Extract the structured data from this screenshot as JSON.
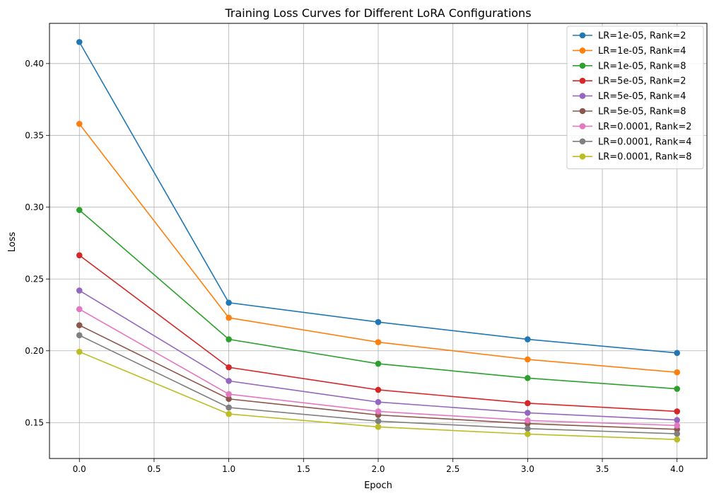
{
  "chart_data": {
    "type": "line",
    "title": "Training Loss Curves for Different LoRA Configurations",
    "xlabel": "Epoch",
    "ylabel": "Loss",
    "x": [
      0,
      1,
      2,
      3,
      4
    ],
    "xlim": [
      -0.2,
      4.2
    ],
    "ylim": [
      0.125,
      0.428
    ],
    "xticks": [
      "0.0",
      "0.5",
      "1.0",
      "1.5",
      "2.0",
      "2.5",
      "3.0",
      "3.5",
      "4.0"
    ],
    "yticks": [
      "0.15",
      "0.20",
      "0.25",
      "0.30",
      "0.35",
      "0.40"
    ],
    "grid": true,
    "legend_position": "top-right",
    "series": [
      {
        "name": "LR=1e-05, Rank=2",
        "color": "#1f77b4",
        "values": [
          0.415,
          0.2335,
          0.22,
          0.208,
          0.1985
        ]
      },
      {
        "name": "LR=1e-05, Rank=4",
        "color": "#ff7f0e",
        "values": [
          0.358,
          0.223,
          0.206,
          0.194,
          0.185
        ]
      },
      {
        "name": "LR=1e-05, Rank=8",
        "color": "#2ca02c",
        "values": [
          0.298,
          0.208,
          0.191,
          0.181,
          0.1735
        ]
      },
      {
        "name": "LR=5e-05, Rank=2",
        "color": "#d62728",
        "values": [
          0.2665,
          0.1885,
          0.1728,
          0.1635,
          0.1578
        ]
      },
      {
        "name": "LR=5e-05, Rank=4",
        "color": "#9467bd",
        "values": [
          0.242,
          0.179,
          0.1643,
          0.1568,
          0.1518
        ]
      },
      {
        "name": "LR=5e-05, Rank=8",
        "color": "#8c564b",
        "values": [
          0.2178,
          0.1665,
          0.1553,
          0.1493,
          0.1453
        ]
      },
      {
        "name": "LR=0.0001, Rank=2",
        "color": "#e377c2",
        "values": [
          0.229,
          0.1698,
          0.1578,
          0.1515,
          0.148
        ]
      },
      {
        "name": "LR=0.0001, Rank=4",
        "color": "#7f7f7f",
        "values": [
          0.2108,
          0.1605,
          0.151,
          0.1458,
          0.1422
        ]
      },
      {
        "name": "LR=0.0001, Rank=8",
        "color": "#bcbd22",
        "values": [
          0.1993,
          0.156,
          0.147,
          0.142,
          0.1382
        ]
      }
    ]
  }
}
